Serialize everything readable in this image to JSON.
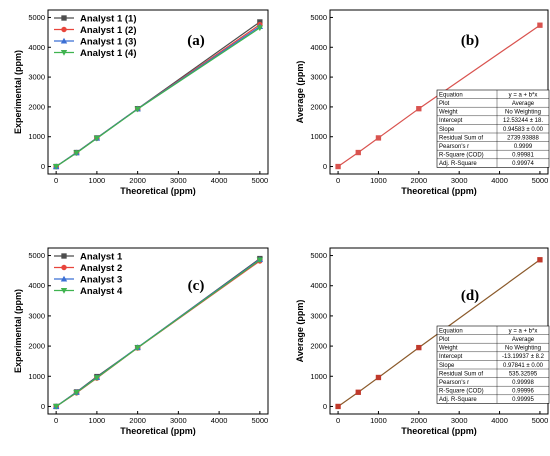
{
  "chart_data": [
    {
      "type": "line",
      "panel_label": "(a)",
      "xlabel": "Theoretical (ppm)",
      "ylabel": "Experimental (ppm)",
      "xlim": [
        -200,
        5200
      ],
      "ylim": [
        -250,
        5250
      ],
      "xticks": [
        0,
        1000,
        2000,
        3000,
        4000,
        5000
      ],
      "yticks": [
        0,
        1000,
        2000,
        3000,
        4000,
        5000
      ],
      "legend": "top-left",
      "x": [
        0,
        500,
        1000,
        2000,
        5000
      ],
      "series": [
        {
          "name": "Analyst 1 (1)",
          "color": "#4d4d4d",
          "marker": "square",
          "values": [
            0,
            470,
            960,
            1940,
            4850
          ]
        },
        {
          "name": "Analyst 1 (2)",
          "color": "#e8453c",
          "marker": "circle",
          "values": [
            0,
            460,
            950,
            1930,
            4760
          ]
        },
        {
          "name": "Analyst 1 (3)",
          "color": "#3b6fd4",
          "marker": "triangle-up",
          "values": [
            0,
            465,
            955,
            1935,
            4700
          ]
        },
        {
          "name": "Analyst 1 (4)",
          "color": "#3fb34f",
          "marker": "triangle-down",
          "values": [
            0,
            455,
            945,
            1925,
            4650
          ]
        }
      ]
    },
    {
      "type": "line",
      "panel_label": "(b)",
      "xlabel": "Theoretical (ppm)",
      "ylabel": "Average (ppm)",
      "xlim": [
        -200,
        5200
      ],
      "ylim": [
        -250,
        5250
      ],
      "xticks": [
        0,
        1000,
        2000,
        3000,
        4000,
        5000
      ],
      "yticks": [
        0,
        1000,
        2000,
        3000,
        4000,
        5000
      ],
      "x": [
        0,
        500,
        1000,
        2000,
        5000
      ],
      "series": [
        {
          "color": "#d9534f",
          "marker": "square",
          "values": [
            0,
            470,
            960,
            1940,
            4740
          ]
        }
      ],
      "fit_table": [
        [
          "Equation",
          "y = a + b*x"
        ],
        [
          "Plot",
          "Average"
        ],
        [
          "Weight",
          "No Weighting"
        ],
        [
          "Intercept",
          "12.53244 ± 18."
        ],
        [
          "Slope",
          "0.94583 ± 0.00"
        ],
        [
          "Residual Sum of",
          "2739.93888"
        ],
        [
          "Pearson's r",
          "0.9999"
        ],
        [
          "R-Square (COD)",
          "0.99981"
        ],
        [
          "Adj. R-Square",
          "0.99974"
        ]
      ]
    },
    {
      "type": "line",
      "panel_label": "(c)",
      "xlabel": "Theoretical (ppm)",
      "ylabel": "Experimental (ppm)",
      "xlim": [
        -200,
        5200
      ],
      "ylim": [
        -250,
        5250
      ],
      "xticks": [
        0,
        1000,
        2000,
        3000,
        4000,
        5000
      ],
      "yticks": [
        0,
        1000,
        2000,
        3000,
        4000,
        5000
      ],
      "legend": "top-left",
      "x": [
        0,
        500,
        1000,
        2000,
        5000
      ],
      "series": [
        {
          "name": "Analyst 1",
          "color": "#4d4d4d",
          "marker": "square",
          "values": [
            0,
            480,
            990,
            1950,
            4900
          ]
        },
        {
          "name": "Analyst 2",
          "color": "#e8453c",
          "marker": "circle",
          "values": [
            0,
            450,
            940,
            1940,
            4820
          ]
        },
        {
          "name": "Analyst 3",
          "color": "#3b6fd4",
          "marker": "triangle-up",
          "values": [
            0,
            470,
            960,
            1955,
            4870
          ]
        },
        {
          "name": "Analyst 4",
          "color": "#3fb34f",
          "marker": "triangle-down",
          "values": [
            0,
            460,
            950,
            1945,
            4850
          ]
        }
      ]
    },
    {
      "type": "line",
      "panel_label": "(d)",
      "xlabel": "Theoretical (ppm)",
      "ylabel": "Average (ppm)",
      "xlim": [
        -200,
        5200
      ],
      "ylim": [
        -250,
        5250
      ],
      "xticks": [
        0,
        1000,
        2000,
        3000,
        4000,
        5000
      ],
      "yticks": [
        0,
        1000,
        2000,
        3000,
        4000,
        5000
      ],
      "x": [
        0,
        500,
        1000,
        2000,
        5000
      ],
      "series": [
        {
          "color": "#c0392b",
          "line_color": "#8b5a2b",
          "marker": "square",
          "values": [
            0,
            470,
            960,
            1950,
            4860
          ]
        }
      ],
      "fit_table": [
        [
          "Equation",
          "y = a + b*x"
        ],
        [
          "Plot",
          "Average"
        ],
        [
          "Weight",
          "No Weighting"
        ],
        [
          "Intercept",
          "-13.19937 ± 8.2"
        ],
        [
          "Slope",
          "0.97841 ± 0.00"
        ],
        [
          "Residual Sum of",
          "535.32595"
        ],
        [
          "Pearson's r",
          "0.99998"
        ],
        [
          "R-Square (COD)",
          "0.99996"
        ],
        [
          "Adj. R-Square",
          "0.99995"
        ]
      ]
    }
  ]
}
